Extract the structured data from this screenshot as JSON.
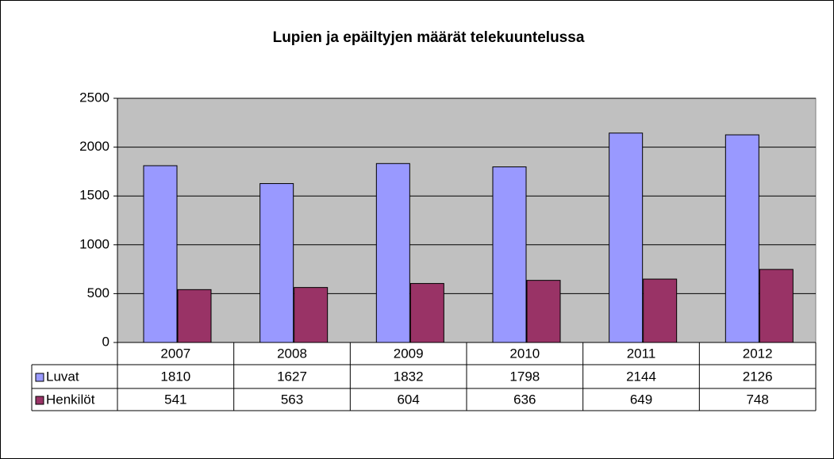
{
  "chart_data": {
    "type": "bar",
    "title": "Lupien ja epäiltyjen määrät telekuuntelussa",
    "categories": [
      "2007",
      "2008",
      "2009",
      "2010",
      "2011",
      "2012"
    ],
    "series": [
      {
        "name": "Luvat",
        "color": "#9999ff",
        "values": [
          1810,
          1627,
          1832,
          1798,
          2144,
          2126
        ]
      },
      {
        "name": "Henkilöt",
        "color": "#993366",
        "values": [
          541,
          563,
          604,
          636,
          649,
          748
        ]
      }
    ],
    "ylim": [
      0,
      2500
    ],
    "yticks": [
      0,
      500,
      1000,
      1500,
      2000,
      2500
    ],
    "grid": true,
    "plot_background": "#c0c0c0"
  }
}
